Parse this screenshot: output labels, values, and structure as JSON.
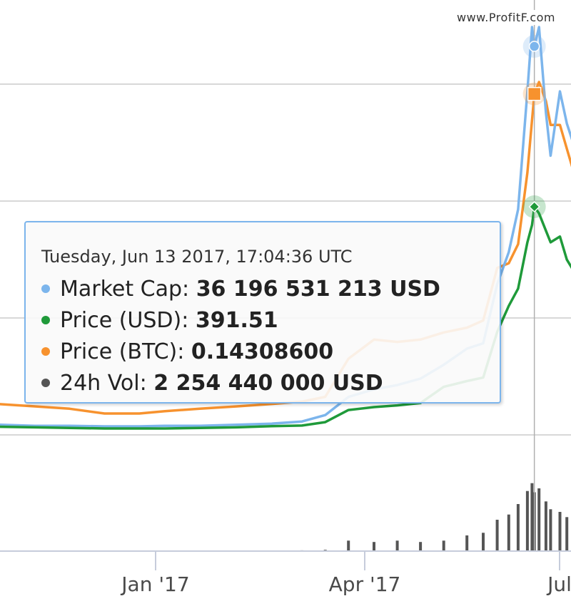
{
  "watermark": "www.ProfitF.com",
  "tooltip": {
    "header": "Tuesday, Jun 13 2017, 17:04:36 UTC",
    "rows": [
      {
        "label": "Market Cap: ",
        "value": "36 196 531 213 USD",
        "color": "#7cb5ec"
      },
      {
        "label": "Price (USD): ",
        "value": "391.51",
        "color": "#1f9a3a"
      },
      {
        "label": "Price (BTC): ",
        "value": "0.14308600",
        "color": "#f7922e"
      },
      {
        "label": "24h Vol: ",
        "value": "2 254 440 000 USD",
        "color": "#555555"
      }
    ]
  },
  "chart_data": {
    "type": "line",
    "x_ticks": [
      "Jan '17",
      "Apr '17",
      "Jul"
    ],
    "x": [
      "2016-10-25",
      "2016-11-10",
      "2016-11-25",
      "2016-12-10",
      "2016-12-25",
      "2017-01-05",
      "2017-01-20",
      "2017-02-05",
      "2017-02-20",
      "2017-03-05",
      "2017-03-15",
      "2017-03-25",
      "2017-04-05",
      "2017-04-15",
      "2017-04-25",
      "2017-05-05",
      "2017-05-15",
      "2017-05-22",
      "2017-05-28",
      "2017-06-02",
      "2017-06-06",
      "2017-06-10",
      "2017-06-12",
      "2017-06-13",
      "2017-06-15",
      "2017-06-18",
      "2017-06-20",
      "2017-06-24",
      "2017-06-27",
      "2017-06-30",
      "2017-07-02"
    ],
    "series": [
      {
        "name": "Market Cap",
        "color": "#7cb5ec",
        "values": [
          0.9,
          0.8,
          0.8,
          0.75,
          0.75,
          0.8,
          0.8,
          0.9,
          1.0,
          1.2,
          1.8,
          3.5,
          4.2,
          4.6,
          5.2,
          6.5,
          8.0,
          8.5,
          14,
          17,
          21,
          32,
          38,
          36.2,
          38,
          30,
          26,
          32,
          29,
          27,
          23
        ]
      },
      {
        "name": "Price (USD)",
        "color": "#1f9a3a",
        "values": [
          11,
          10,
          9,
          8,
          8,
          8,
          9,
          10,
          12,
          13,
          19,
          40,
          45,
          48,
          52,
          80,
          90,
          96,
          175,
          220,
          250,
          330,
          360,
          391.51,
          380,
          350,
          330,
          340,
          300,
          280,
          240
        ]
      },
      {
        "name": "Price (BTC)",
        "color": "#f7922e",
        "values": [
          0.013,
          0.012,
          0.011,
          0.009,
          0.009,
          0.01,
          0.011,
          0.012,
          0.013,
          0.014,
          0.016,
          0.032,
          0.04,
          0.039,
          0.04,
          0.043,
          0.045,
          0.048,
          0.07,
          0.072,
          0.08,
          0.11,
          0.132,
          0.143,
          0.148,
          0.14,
          0.13,
          0.13,
          0.12,
          0.11,
          0.1
        ]
      }
    ],
    "volume": {
      "name": "24h Vol",
      "color": "#555555",
      "values": [
        0.01,
        0.01,
        0.01,
        0.01,
        0.01,
        0.01,
        0.01,
        0.02,
        0.02,
        0.03,
        0.05,
        0.4,
        0.35,
        0.4,
        0.35,
        0.4,
        0.6,
        0.7,
        1.2,
        1.4,
        1.8,
        2.3,
        2.6,
        2.25,
        2.4,
        1.9,
        1.6,
        1.5,
        1.3,
        1.3,
        1.1
      ]
    },
    "grid": true,
    "legend": "none"
  }
}
